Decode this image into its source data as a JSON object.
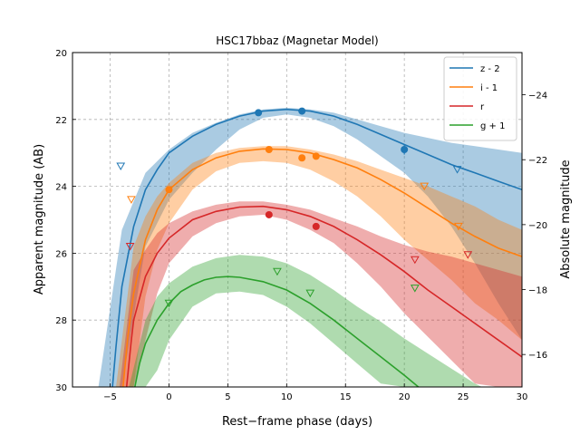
{
  "chart_data": {
    "type": "line",
    "title": "HSC17bbaz (Magnetar Model)",
    "xlabel": "Rest−frame phase (days)",
    "ylabel": "Apparent magnitude (AB)",
    "ylabel_right": "Absolute magnitude",
    "xlim": [
      -8.2,
      30
    ],
    "ylim": [
      30,
      20
    ],
    "ylim_right": [
      -15,
      -25.3
    ],
    "grid": true,
    "xticks": [
      -5,
      0,
      5,
      10,
      15,
      20,
      25,
      30
    ],
    "xtick_labels": [
      "−5",
      "0",
      "5",
      "10",
      "15",
      "20",
      "25",
      "30"
    ],
    "yticks": [
      20,
      22,
      24,
      26,
      28,
      30
    ],
    "ytick_labels": [
      "20",
      "22",
      "24",
      "26",
      "28",
      "30"
    ],
    "yticks_right": [
      -24,
      -22,
      -20,
      -18,
      -16
    ],
    "ytick_labels_right": [
      "−24",
      "−22",
      "−20",
      "−18",
      "−16"
    ],
    "legend_position": "top-right",
    "series": [
      {
        "name": "z - 2",
        "color": "#1f77b4",
        "model_x": [
          -4.8,
          -4.5,
          -4,
          -3,
          -2,
          -1,
          0,
          2,
          4,
          6,
          8,
          10,
          12,
          14,
          16,
          18,
          20,
          22,
          24,
          26,
          28,
          30
        ],
        "model_y": [
          30.0,
          28.8,
          27.0,
          25.2,
          24.1,
          23.5,
          23.0,
          22.5,
          22.15,
          21.9,
          21.75,
          21.7,
          21.75,
          21.9,
          22.15,
          22.45,
          22.75,
          23.05,
          23.35,
          23.6,
          23.85,
          24.1
        ],
        "band_x": [
          -6,
          -4,
          -2,
          0,
          2,
          4,
          6,
          8,
          10,
          12,
          14,
          16,
          18,
          20,
          22,
          24,
          26,
          28,
          30
        ],
        "band_lower": [
          30.0,
          25.3,
          23.6,
          22.9,
          22.4,
          22.1,
          21.85,
          21.7,
          21.65,
          21.7,
          21.8,
          22.0,
          22.2,
          22.4,
          22.55,
          22.7,
          22.8,
          22.9,
          23.0
        ],
        "band_upper": [
          30.0,
          30.0,
          25.8,
          24.4,
          23.6,
          22.9,
          22.3,
          21.95,
          21.85,
          21.95,
          22.2,
          22.6,
          23.1,
          23.6,
          24.3,
          25.2,
          26.3,
          27.5,
          28.6
        ],
        "detections": [
          {
            "x": 7.6,
            "y": 21.8
          },
          {
            "x": 11.3,
            "y": 21.75
          },
          {
            "x": 20.0,
            "y": 22.9
          }
        ],
        "detection_errors": [
          0.08,
          0.08,
          0.15
        ],
        "upper_limits": [
          {
            "x": -4.1,
            "y": 23.4
          },
          {
            "x": 24.5,
            "y": 23.5
          }
        ]
      },
      {
        "name": "i - 1",
        "color": "#ff7f0e",
        "model_x": [
          -3.9,
          -3.5,
          -3,
          -2,
          -1,
          0,
          2,
          4,
          6,
          8,
          10,
          12,
          14,
          16,
          18,
          20,
          22,
          24,
          26,
          28,
          30
        ],
        "model_y": [
          30.0,
          28.5,
          27.2,
          25.6,
          24.7,
          24.1,
          23.5,
          23.15,
          22.95,
          22.88,
          22.9,
          23.0,
          23.2,
          23.45,
          23.8,
          24.2,
          24.65,
          25.1,
          25.5,
          25.85,
          26.1
        ],
        "band_x": [
          -4.5,
          -3,
          -2,
          -1,
          0,
          2,
          4,
          6,
          8,
          10,
          12,
          14,
          16,
          18,
          20,
          22,
          24,
          26,
          28,
          30
        ],
        "band_lower": [
          30.0,
          25.8,
          24.9,
          24.3,
          23.9,
          23.3,
          23.0,
          22.85,
          22.8,
          22.8,
          22.9,
          23.05,
          23.25,
          23.5,
          23.75,
          24.0,
          24.3,
          24.6,
          25.0,
          25.3
        ],
        "band_upper": [
          30.0,
          30.0,
          27.3,
          25.9,
          25.1,
          24.1,
          23.55,
          23.3,
          23.25,
          23.3,
          23.5,
          23.85,
          24.3,
          24.9,
          25.6,
          26.2,
          26.8,
          27.5,
          28.0,
          28.6
        ],
        "detections": [
          {
            "x": 0.0,
            "y": 24.1
          },
          {
            "x": 8.5,
            "y": 22.9
          },
          {
            "x": 11.3,
            "y": 23.15
          },
          {
            "x": 12.5,
            "y": 23.1
          }
        ],
        "detection_errors": [
          0.1,
          0.07,
          0.08,
          0.08
        ],
        "upper_limits": [
          {
            "x": -3.2,
            "y": 24.4
          },
          {
            "x": 21.7,
            "y": 24.0
          },
          {
            "x": 24.6,
            "y": 25.2
          }
        ]
      },
      {
        "name": "r",
        "color": "#d62728",
        "model_x": [
          -3.6,
          -3.2,
          -3,
          -2,
          -1,
          0,
          2,
          4,
          6,
          8,
          10,
          12,
          14,
          16,
          18,
          20,
          22,
          24,
          26,
          28,
          30
        ],
        "model_y": [
          30.0,
          28.6,
          28.0,
          26.7,
          26.0,
          25.55,
          25.0,
          24.75,
          24.62,
          24.6,
          24.7,
          24.9,
          25.2,
          25.6,
          26.05,
          26.55,
          27.1,
          27.6,
          28.1,
          28.6,
          29.1
        ],
        "band_x": [
          -4.2,
          -3,
          -2,
          -1,
          0,
          2,
          4,
          6,
          8,
          10,
          12,
          14,
          16,
          18,
          20,
          22,
          24,
          26,
          28,
          30
        ],
        "band_lower": [
          30.0,
          26.5,
          25.9,
          25.4,
          25.1,
          24.75,
          24.55,
          24.45,
          24.45,
          24.55,
          24.7,
          24.95,
          25.2,
          25.5,
          25.75,
          25.95,
          26.1,
          26.3,
          26.5,
          26.7
        ],
        "band_upper": [
          30.0,
          30.0,
          28.6,
          27.2,
          26.3,
          25.5,
          25.1,
          24.9,
          24.85,
          25.0,
          25.3,
          25.7,
          26.3,
          27.0,
          27.8,
          28.5,
          29.2,
          29.9,
          30.0,
          30.0
        ],
        "detections": [
          {
            "x": 8.5,
            "y": 24.85
          },
          {
            "x": 12.5,
            "y": 25.2
          }
        ],
        "detection_errors": [
          0.08,
          0.1
        ],
        "upper_limits": [
          {
            "x": -3.3,
            "y": 25.8
          },
          {
            "x": 20.9,
            "y": 26.2
          },
          {
            "x": 25.4,
            "y": 26.05
          }
        ]
      },
      {
        "name": "g + 1",
        "color": "#2ca02c",
        "model_x": [
          -2.9,
          -2.5,
          -2,
          -1,
          0,
          1,
          2,
          3,
          4,
          5,
          6,
          8,
          10,
          12,
          14,
          16,
          18,
          20,
          21.2
        ],
        "model_y": [
          30.0,
          29.3,
          28.7,
          28.0,
          27.5,
          27.15,
          26.95,
          26.8,
          26.72,
          26.7,
          26.72,
          26.85,
          27.1,
          27.5,
          28.0,
          28.55,
          29.1,
          29.65,
          30.0
        ],
        "band_x": [
          -3.4,
          -2,
          -1,
          0,
          2,
          4,
          6,
          8,
          10,
          12,
          14,
          16,
          18,
          20,
          22,
          24,
          26,
          26.6
        ],
        "band_lower": [
          30.0,
          28.0,
          27.3,
          26.9,
          26.4,
          26.15,
          26.05,
          26.1,
          26.3,
          26.65,
          27.1,
          27.6,
          28.05,
          28.55,
          29.0,
          29.45,
          29.9,
          30.0
        ],
        "band_upper": [
          30.0,
          30.0,
          29.5,
          28.6,
          27.6,
          27.2,
          27.15,
          27.25,
          27.6,
          28.1,
          28.7,
          29.3,
          29.9,
          30.0,
          30.0,
          30.0,
          30.0,
          30.0
        ],
        "detections": [],
        "detection_errors": [],
        "upper_limits": [
          {
            "x": 0.0,
            "y": 27.5
          },
          {
            "x": 9.2,
            "y": 26.55
          },
          {
            "x": 12.0,
            "y": 27.2
          },
          {
            "x": 20.9,
            "y": 27.05
          }
        ]
      }
    ]
  }
}
